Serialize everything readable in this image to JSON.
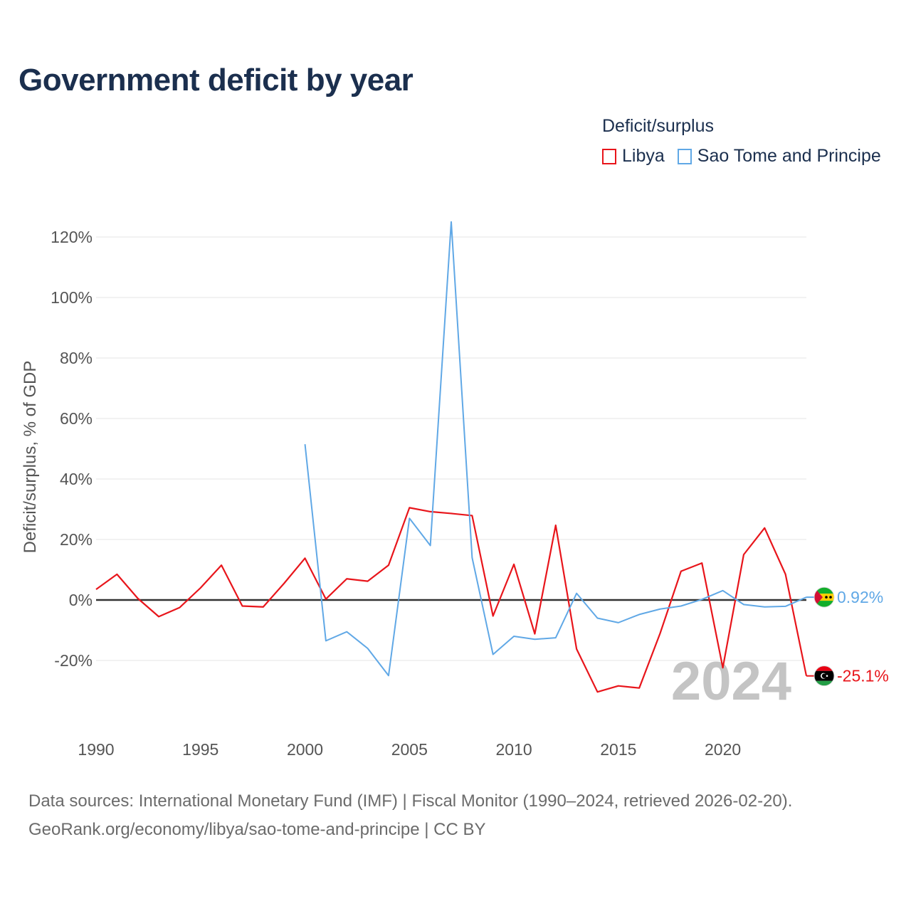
{
  "title": "Government deficit by year",
  "legend": {
    "title": "Deficit/surplus",
    "items": [
      {
        "label": "Libya",
        "color": "#e8151b"
      },
      {
        "label": "Sao Tome and Principe",
        "color": "#60a8e6"
      }
    ]
  },
  "sources": {
    "line1": "Data sources: International Monetary Fund (IMF) | Fiscal Monitor (1990–2024, retrieved 2026-02-20).",
    "line2": "GeoRank.org/economy/libya/sao-tome-and-principe | CC BY"
  },
  "chart_data": {
    "type": "line",
    "title": "Government deficit by year",
    "xlabel": "",
    "ylabel": "Deficit/surplus, % of GDP",
    "xlim": [
      1990,
      2024
    ],
    "ylim": [
      -35,
      130
    ],
    "x_ticks": [
      1990,
      1995,
      2000,
      2005,
      2010,
      2015,
      2020
    ],
    "y_ticks": [
      -20,
      0,
      20,
      40,
      60,
      80,
      100,
      120
    ],
    "y_tick_labels": [
      "-20%",
      "0%",
      "20%",
      "40%",
      "60%",
      "80%",
      "100%",
      "120%"
    ],
    "year_watermark": "2024",
    "series": [
      {
        "name": "Libya",
        "color": "#e8151b",
        "end_label": "-25.1%",
        "points": [
          [
            1990,
            3.5
          ],
          [
            1991,
            8.5
          ],
          [
            1992,
            0.5
          ],
          [
            1993,
            -5.5
          ],
          [
            1994,
            -2.5
          ],
          [
            1995,
            4
          ],
          [
            1996,
            11.5
          ],
          [
            1997,
            -2
          ],
          [
            1998,
            -2.3
          ],
          [
            1999,
            5.5
          ],
          [
            2000,
            13.8
          ],
          [
            2001,
            0.3
          ],
          [
            2002,
            7
          ],
          [
            2003,
            6.2
          ],
          [
            2004,
            11.5
          ],
          [
            2005,
            30.5
          ],
          [
            2006,
            29.2
          ],
          [
            2007,
            28.6
          ],
          [
            2008,
            27.9
          ],
          [
            2009,
            -5.3
          ],
          [
            2010,
            11.8
          ],
          [
            2011,
            -11.2
          ],
          [
            2012,
            24.7
          ],
          [
            2013,
            -16.2
          ],
          [
            2014,
            -30.4
          ],
          [
            2015,
            -28.4
          ],
          [
            2016,
            -29.1
          ],
          [
            2017,
            -11
          ],
          [
            2018,
            9.5
          ],
          [
            2019,
            12.2
          ],
          [
            2020,
            -22.4
          ],
          [
            2021,
            15
          ],
          [
            2022,
            23.8
          ],
          [
            2023,
            8.5
          ],
          [
            2024,
            -25.1
          ]
        ]
      },
      {
        "name": "Sao Tome and Principe",
        "color": "#60a8e6",
        "end_label": "0.92%",
        "points": [
          [
            2000,
            51.5
          ],
          [
            2001,
            -13.5
          ],
          [
            2002,
            -10.5
          ],
          [
            2003,
            -16
          ],
          [
            2004,
            -25
          ],
          [
            2005,
            27
          ],
          [
            2006,
            18
          ],
          [
            2007,
            125
          ],
          [
            2008,
            14
          ],
          [
            2009,
            -18
          ],
          [
            2010,
            -12
          ],
          [
            2011,
            -13
          ],
          [
            2012,
            -12.5
          ],
          [
            2013,
            2.2
          ],
          [
            2014,
            -6
          ],
          [
            2015,
            -7.5
          ],
          [
            2016,
            -4.8
          ],
          [
            2017,
            -3
          ],
          [
            2018,
            -2
          ],
          [
            2019,
            0.2
          ],
          [
            2020,
            3.1
          ],
          [
            2021,
            -1.5
          ],
          [
            2022,
            -2.3
          ],
          [
            2023,
            -2.1
          ],
          [
            2024,
            0.92
          ]
        ]
      }
    ]
  }
}
